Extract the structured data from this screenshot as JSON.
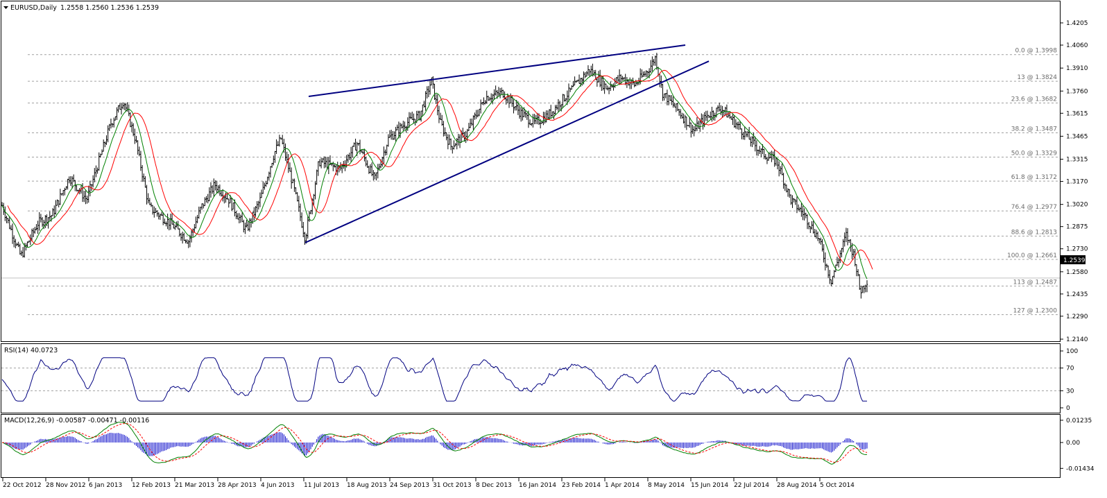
{
  "symbol_header": {
    "symbol": "EURUSD,Daily",
    "ohlc": "1.2558 1.2560 1.2536 1.2539"
  },
  "chart_data": {
    "type": "candlestick-ohlc",
    "price_axis": {
      "ticks": [
        "1.4205",
        "1.4060",
        "1.3910",
        "1.3760",
        "1.3615",
        "1.3465",
        "1.3315",
        "1.3170",
        "1.3020",
        "1.2875",
        "1.2730",
        "1.2580",
        "1.2435",
        "1.2290",
        "1.2140"
      ],
      "ylim": [
        1.2115,
        1.4265
      ],
      "current_price": "1.2539"
    },
    "time_axis": {
      "labels": [
        "22 Oct 2012",
        "28 Nov 2012",
        "6 Jan 2013",
        "12 Feb 2013",
        "21 Mar 2013",
        "28 Apr 2013",
        "4 Jun 2013",
        "11 Jul 2013",
        "18 Aug 2013",
        "24 Sep 2013",
        "31 Oct 2013",
        "8 Dec 2013",
        "16 Jan 2014",
        "23 Feb 2014",
        "1 Apr 2014",
        "8 May 2014",
        "15 Jun 2014",
        "22 Jul 2014",
        "28 Aug 2014",
        "5 Oct 2014"
      ]
    },
    "price_path": [
      [
        0,
        1.305
      ],
      [
        30,
        1.268
      ],
      [
        55,
        1.29
      ],
      [
        75,
        1.295
      ],
      [
        100,
        1.32
      ],
      [
        125,
        1.305
      ],
      [
        160,
        1.355
      ],
      [
        178,
        1.37
      ],
      [
        195,
        1.345
      ],
      [
        215,
        1.3
      ],
      [
        245,
        1.29
      ],
      [
        272,
        1.278
      ],
      [
        290,
        1.3
      ],
      [
        310,
        1.315
      ],
      [
        330,
        1.305
      ],
      [
        355,
        1.285
      ],
      [
        375,
        1.305
      ],
      [
        395,
        1.335
      ],
      [
        405,
        1.345
      ],
      [
        425,
        1.31
      ],
      [
        440,
        1.28
      ],
      [
        460,
        1.33
      ],
      [
        490,
        1.325
      ],
      [
        515,
        1.342
      ],
      [
        540,
        1.318
      ],
      [
        560,
        1.345
      ],
      [
        585,
        1.355
      ],
      [
        605,
        1.36
      ],
      [
        622,
        1.383
      ],
      [
        635,
        1.355
      ],
      [
        650,
        1.34
      ],
      [
        672,
        1.348
      ],
      [
        700,
        1.372
      ],
      [
        725,
        1.375
      ],
      [
        750,
        1.362
      ],
      [
        770,
        1.355
      ],
      [
        790,
        1.36
      ],
      [
        820,
        1.375
      ],
      [
        850,
        1.39
      ],
      [
        875,
        1.378
      ],
      [
        895,
        1.385
      ],
      [
        915,
        1.38
      ],
      [
        935,
        1.39
      ],
      [
        945,
        1.398
      ],
      [
        955,
        1.375
      ],
      [
        980,
        1.362
      ],
      [
        1000,
        1.35
      ],
      [
        1020,
        1.36
      ],
      [
        1040,
        1.365
      ],
      [
        1060,
        1.355
      ],
      [
        1080,
        1.345
      ],
      [
        1100,
        1.335
      ],
      [
        1120,
        1.33
      ],
      [
        1140,
        1.305
      ],
      [
        1160,
        1.295
      ],
      [
        1180,
        1.28
      ],
      [
        1198,
        1.252
      ],
      [
        1210,
        1.268
      ],
      [
        1220,
        1.282
      ],
      [
        1232,
        1.268
      ],
      [
        1240,
        1.245
      ],
      [
        1252,
        1.254
      ]
    ],
    "fibonacci_levels": [
      {
        "label": "0.0 @ 1.3998",
        "price": 1.3998
      },
      {
        "label": "13 @ 1.3824",
        "price": 1.3824
      },
      {
        "label": "23.6 @ 1.3682",
        "price": 1.3682
      },
      {
        "label": "38.2 @ 1.3487",
        "price": 1.3487
      },
      {
        "label": "50.0 @ 1.3329",
        "price": 1.3329
      },
      {
        "label": "61.8 @ 1.3172",
        "price": 1.3172
      },
      {
        "label": "76.4 @ 1.2977",
        "price": 1.2977
      },
      {
        "label": "88.6 @ 1.2813",
        "price": 1.2813
      },
      {
        "label": "100.0 @ 1.2661",
        "price": 1.2661
      },
      {
        "label": "113 @ 1.2487",
        "price": 1.2487
      },
      {
        "label": "127 @ 1.2300",
        "price": 1.23
      }
    ],
    "trendlines": [
      {
        "from": [
          445,
          1.3725
        ],
        "to": [
          988,
          1.406
        ]
      },
      {
        "from": [
          440,
          1.277
        ],
        "to": [
          1022,
          1.3955
        ]
      }
    ],
    "rsi": {
      "label": "RSI(14) 40.0723",
      "ticks": [
        "100",
        "70",
        "30",
        "0"
      ],
      "levels": [
        70,
        30
      ]
    },
    "macd": {
      "label": "MACD(12,26,9) -0.00587 -0.00471 -0.00116",
      "ticks": [
        "0.01235",
        "0.00",
        "-0.01434"
      ]
    },
    "colors": {
      "bars": "#000000",
      "ma_fast": "#ff0000",
      "ma_slow": "#008000",
      "trendline": "#000080",
      "rsi": "#000080",
      "macd_hist": "#0000c8",
      "grid": "#a0a0a0"
    }
  }
}
